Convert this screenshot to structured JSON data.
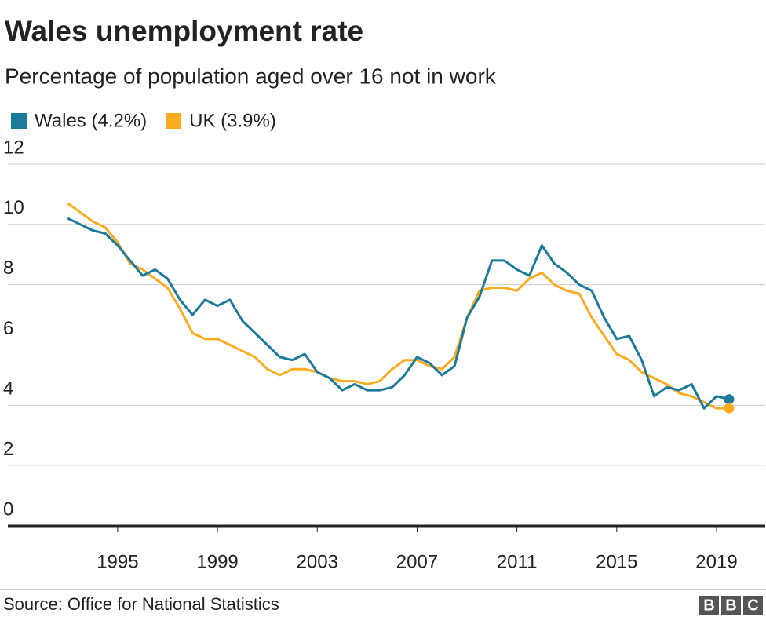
{
  "chart_data": {
    "type": "line",
    "title": "Wales unemployment rate",
    "subtitle": "Percentage of population aged over 16 not in work",
    "source": "Source: Office for National Statistics",
    "logo": [
      "B",
      "B",
      "C"
    ],
    "x": [
      1993,
      1993.5,
      1994,
      1994.5,
      1995,
      1995.5,
      1996,
      1996.5,
      1997,
      1997.5,
      1998,
      1998.5,
      1999,
      1999.5,
      2000,
      2000.5,
      2001,
      2001.5,
      2002,
      2002.5,
      2003,
      2003.5,
      2004,
      2004.5,
      2005,
      2005.5,
      2006,
      2006.5,
      2007,
      2007.5,
      2008,
      2008.5,
      2009,
      2009.5,
      2010,
      2010.5,
      2011,
      2011.5,
      2012,
      2012.5,
      2013,
      2013.5,
      2014,
      2014.5,
      2015,
      2015.5,
      2016,
      2016.5,
      2017,
      2017.5,
      2018,
      2018.5,
      2019,
      2019.5
    ],
    "series": [
      {
        "name": "Wales (4.2%)",
        "color": "#1b7b9c",
        "values": [
          10.2,
          10.0,
          9.8,
          9.7,
          9.3,
          8.8,
          8.3,
          8.5,
          8.2,
          7.5,
          7.0,
          7.5,
          7.3,
          7.5,
          6.8,
          6.4,
          6.0,
          5.6,
          5.5,
          5.7,
          5.1,
          4.9,
          4.5,
          4.7,
          4.5,
          4.5,
          4.6,
          5.0,
          5.6,
          5.4,
          5.0,
          5.3,
          6.9,
          7.6,
          8.8,
          8.8,
          8.5,
          8.3,
          9.3,
          8.7,
          8.4,
          8.0,
          7.8,
          6.9,
          6.2,
          6.3,
          5.5,
          4.3,
          4.6,
          4.5,
          4.7,
          3.9,
          4.3,
          4.2
        ]
      },
      {
        "name": "UK (3.9%)",
        "color": "#fcaa1e",
        "values": [
          10.7,
          10.4,
          10.1,
          9.9,
          9.4,
          8.7,
          8.5,
          8.2,
          7.9,
          7.2,
          6.4,
          6.2,
          6.2,
          6.0,
          5.8,
          5.6,
          5.2,
          5.0,
          5.2,
          5.2,
          5.1,
          4.9,
          4.8,
          4.8,
          4.7,
          4.8,
          5.2,
          5.5,
          5.5,
          5.3,
          5.2,
          5.6,
          6.9,
          7.8,
          7.9,
          7.9,
          7.8,
          8.2,
          8.4,
          8.0,
          7.8,
          7.7,
          6.9,
          6.3,
          5.7,
          5.5,
          5.1,
          4.9,
          4.7,
          4.4,
          4.3,
          4.1,
          3.9,
          3.9
        ]
      }
    ],
    "xlim": [
      1990.6,
      2020.95
    ],
    "xticks": [
      1995,
      1999,
      2003,
      2007,
      2011,
      2015,
      2019
    ],
    "ylim": [
      0,
      12
    ],
    "yticks": [
      0,
      2,
      4,
      6,
      8,
      10,
      12
    ],
    "grid": true
  }
}
